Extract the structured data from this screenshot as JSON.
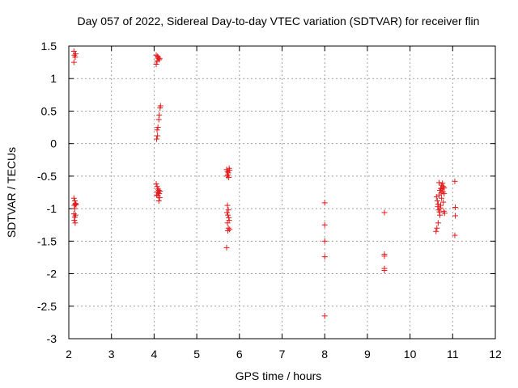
{
  "chart_data": {
    "type": "scatter",
    "title": "Day 057 of 2022, Sidereal Day-to-day VTEC variation (SDTVAR) for receiver flin",
    "xlabel": "GPS time / hours",
    "ylabel": "SDTVAR / TECUs",
    "xlim": [
      2,
      12
    ],
    "ylim": [
      -3,
      1.5
    ],
    "xticks": [
      "2",
      "3",
      "4",
      "5",
      "6",
      "7",
      "8",
      "9",
      "10",
      "11",
      "12"
    ],
    "yticks": [
      "1.5",
      "1",
      "0.5",
      "0",
      "-0.5",
      "-1",
      "-1.5",
      "-2",
      "-2.5",
      "-3"
    ],
    "grid": true,
    "marker": "+",
    "series": [
      {
        "color": "#e41a1c",
        "points": [
          [
            2.12,
            1.42
          ],
          [
            2.13,
            1.36
          ],
          [
            2.15,
            1.33
          ],
          [
            2.12,
            1.25
          ],
          [
            2.16,
            1.38
          ],
          [
            2.12,
            -0.84
          ],
          [
            2.14,
            -0.88
          ],
          [
            2.16,
            -0.92
          ],
          [
            2.13,
            -0.95
          ],
          [
            2.15,
            -0.93
          ],
          [
            2.14,
            -1.0
          ],
          [
            2.12,
            -1.08
          ],
          [
            2.16,
            -1.1
          ],
          [
            2.14,
            -1.13
          ],
          [
            2.13,
            -1.18
          ],
          [
            2.15,
            -1.22
          ],
          [
            2.17,
            -0.94
          ],
          [
            4.05,
            1.36
          ],
          [
            4.08,
            1.34
          ],
          [
            4.1,
            1.31
          ],
          [
            4.12,
            1.29
          ],
          [
            4.07,
            1.27
          ],
          [
            4.05,
            1.22
          ],
          [
            4.09,
            1.33
          ],
          [
            4.13,
            1.31
          ],
          [
            4.15,
            0.58
          ],
          [
            4.14,
            0.55
          ],
          [
            4.12,
            0.44
          ],
          [
            4.11,
            0.37
          ],
          [
            4.09,
            0.25
          ],
          [
            4.07,
            0.21
          ],
          [
            4.08,
            0.12
          ],
          [
            4.06,
            0.07
          ],
          [
            4.05,
            -0.62
          ],
          [
            4.07,
            -0.66
          ],
          [
            4.09,
            -0.7
          ],
          [
            4.11,
            -0.72
          ],
          [
            4.08,
            -0.74
          ],
          [
            4.1,
            -0.76
          ],
          [
            4.12,
            -0.77
          ],
          [
            4.06,
            -0.79
          ],
          [
            4.13,
            -0.83
          ],
          [
            4.11,
            -0.88
          ],
          [
            4.14,
            -0.73
          ],
          [
            4.09,
            -0.8
          ],
          [
            5.7,
            -0.4
          ],
          [
            5.72,
            -0.43
          ],
          [
            5.74,
            -0.45
          ],
          [
            5.76,
            -0.38
          ],
          [
            5.73,
            -0.48
          ],
          [
            5.71,
            -0.5
          ],
          [
            5.75,
            -0.52
          ],
          [
            5.77,
            -0.41
          ],
          [
            5.72,
            -0.95
          ],
          [
            5.74,
            -1.02
          ],
          [
            5.71,
            -1.06
          ],
          [
            5.73,
            -1.1
          ],
          [
            5.75,
            -1.14
          ],
          [
            5.76,
            -1.18
          ],
          [
            5.72,
            -1.22
          ],
          [
            5.74,
            -1.3
          ],
          [
            5.77,
            -1.32
          ],
          [
            5.73,
            -1.34
          ],
          [
            5.7,
            -1.6
          ],
          [
            8.0,
            -0.91
          ],
          [
            8.0,
            -1.25
          ],
          [
            8.0,
            -1.5
          ],
          [
            8.0,
            -1.74
          ],
          [
            8.0,
            -2.65
          ],
          [
            9.4,
            -1.06
          ],
          [
            9.4,
            -1.7
          ],
          [
            9.4,
            -1.73
          ],
          [
            9.4,
            -1.92
          ],
          [
            9.4,
            -1.95
          ],
          [
            10.62,
            -0.82
          ],
          [
            10.64,
            -0.88
          ],
          [
            10.66,
            -0.93
          ],
          [
            10.68,
            -0.79
          ],
          [
            10.7,
            -0.72
          ],
          [
            10.72,
            -0.69
          ],
          [
            10.74,
            -0.64
          ],
          [
            10.76,
            -0.61
          ],
          [
            10.78,
            -0.66
          ],
          [
            10.8,
            -0.68
          ],
          [
            10.65,
            -0.97
          ],
          [
            10.67,
            -1.02
          ],
          [
            10.69,
            -1.05
          ],
          [
            10.71,
            -0.99
          ],
          [
            10.73,
            -0.76
          ],
          [
            10.75,
            -0.7
          ],
          [
            10.77,
            -0.74
          ],
          [
            10.79,
            -1.04
          ],
          [
            10.81,
            -1.07
          ],
          [
            10.63,
            -1.3
          ],
          [
            10.61,
            -1.35
          ],
          [
            10.66,
            -1.22
          ],
          [
            10.7,
            -1.1
          ],
          [
            10.74,
            -0.84
          ],
          [
            10.78,
            -0.9
          ],
          [
            10.8,
            -0.77
          ],
          [
            10.68,
            -0.6
          ],
          [
            10.72,
            -0.95
          ],
          [
            11.05,
            -0.58
          ],
          [
            11.06,
            -0.98
          ],
          [
            11.06,
            -1.11
          ],
          [
            11.05,
            -1.41
          ]
        ]
      }
    ]
  }
}
